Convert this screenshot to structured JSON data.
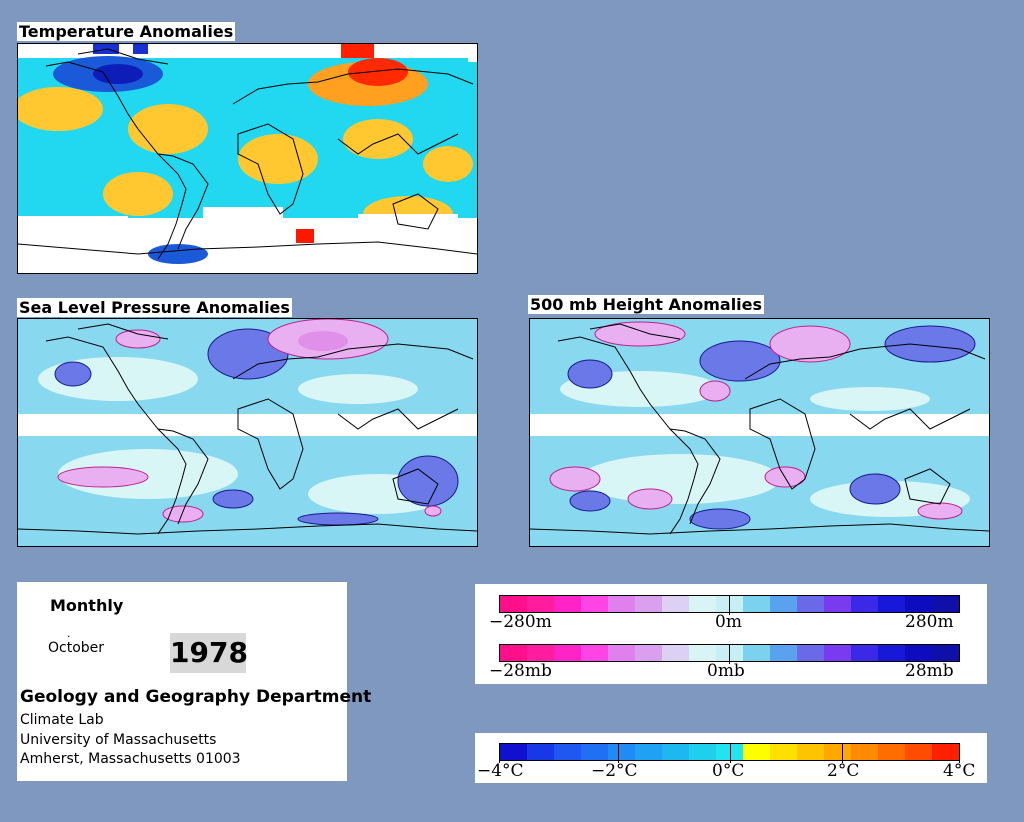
{
  "panels": {
    "temperature": {
      "title": "Temperature Anomalies"
    },
    "slp": {
      "title": "Sea Level Pressure Anomalies"
    },
    "height500": {
      "title": "500 mb Height Anomalies"
    }
  },
  "info": {
    "period": "Monthly",
    "dot": ".",
    "month": "October",
    "year": "1978",
    "department": "Geology and Geography Department",
    "lines": [
      "Climate Lab",
      "University of Massachusetts",
      "Amherst, Massachusetts 01003"
    ]
  },
  "legend_height": {
    "labels": {
      "low": "−280m",
      "mid": "0m",
      "high": "280m"
    },
    "colors": [
      "#ff0f8c",
      "#ff1c9e",
      "#ff23c8",
      "#ff44e6",
      "#e080ee",
      "#d8a0ee",
      "#dcd0f4",
      "#d8f4f4",
      "#c8f0f4",
      "#7ad2ee",
      "#5aa2ee",
      "#6a6ae8",
      "#7a3af0",
      "#3a2ae8",
      "#1818d8",
      "#0d0dbf",
      "#1010a8"
    ]
  },
  "legend_pressure": {
    "labels": {
      "low": "−28mb",
      "mid": "0mb",
      "high": "28mb"
    },
    "colors": [
      "#ff0f8c",
      "#ff1c9e",
      "#ff23c8",
      "#ff44e6",
      "#e080ee",
      "#d8a0ee",
      "#dcd0f4",
      "#d8f4f4",
      "#c8f0f4",
      "#7ad2ee",
      "#5aa2ee",
      "#6a6ae8",
      "#7a3af0",
      "#3a2ae8",
      "#1818d8",
      "#0d0dbf",
      "#1010a8"
    ]
  },
  "legend_temperature": {
    "labels": {
      "l1": "−4°C",
      "l2": "−2°C",
      "l3": "0°C",
      "l4": "2°C",
      "l5": "4°C"
    },
    "colors": [
      "#1010d0",
      "#1838e8",
      "#1e58f0",
      "#2070f4",
      "#1f8cf4",
      "#1fa2f4",
      "#1eb8f0",
      "#1ed0ee",
      "#22e4ee",
      "#ffff00",
      "#ffe000",
      "#ffc400",
      "#ffa800",
      "#ff8c00",
      "#ff6c00",
      "#ff4c00",
      "#ff2000"
    ]
  }
}
